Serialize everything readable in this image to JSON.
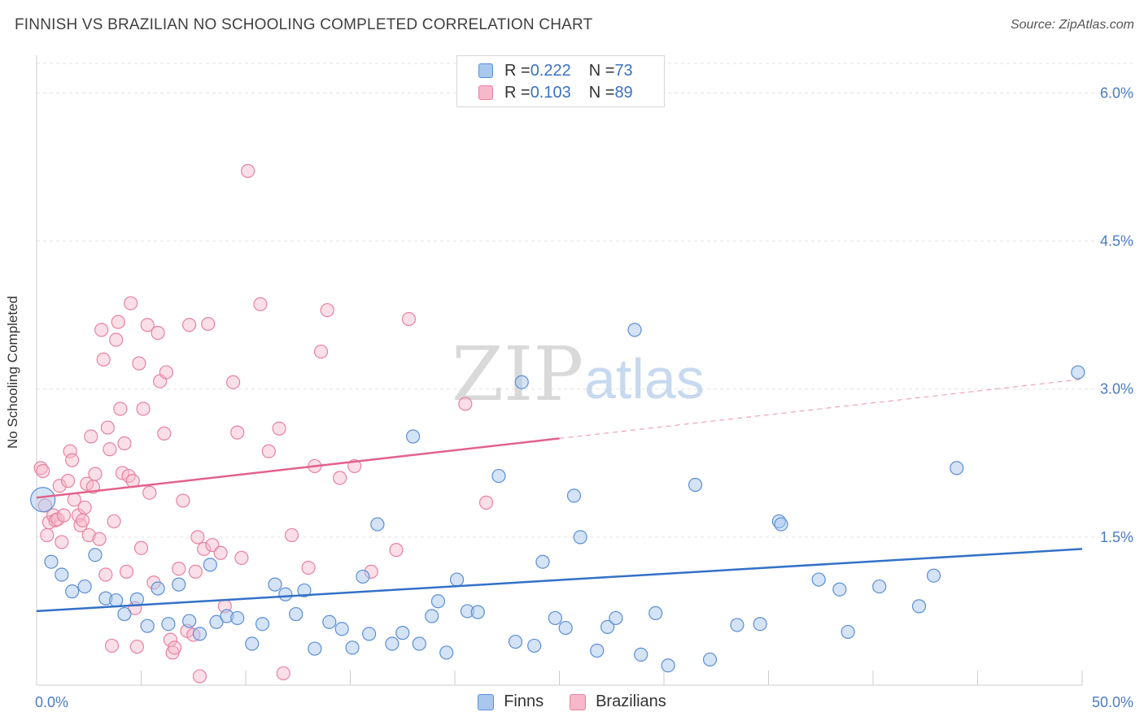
{
  "title": "FINNISH VS BRAZILIAN NO SCHOOLING COMPLETED CORRELATION CHART",
  "source": "Source: ZipAtlas.com",
  "watermark": {
    "zip": "ZIP",
    "atlas": "atlas"
  },
  "legend": {
    "rows": [
      {
        "r_label": "R = ",
        "r_value": "0.222",
        "n_label": "N = ",
        "n_value": "73"
      },
      {
        "r_label": "R = ",
        "r_value": "0.103",
        "n_label": "N = ",
        "n_value": "89"
      }
    ]
  },
  "bottom_legend": [
    "Finns",
    "Brazilians"
  ],
  "colors": {
    "finns_fill": "#a9c8ee",
    "finns_stroke": "#5b8fd6",
    "finns_line": "#3471c6",
    "braz_fill": "#f7b8cb",
    "braz_stroke": "#e8819f",
    "braz_line": "#e2628c",
    "grid": "#e3e3e3",
    "axis": "#cccccc",
    "tick_text": "#4a7cc7"
  },
  "chart_data": {
    "type": "scatter",
    "title": "FINNISH VS BRAZILIAN NO SCHOOLING COMPLETED CORRELATION CHART",
    "xlabel": "",
    "ylabel": "No Schooling Completed",
    "xlim": [
      0,
      50
    ],
    "ylim": [
      0,
      6.3
    ],
    "x_tick_labels": [
      "0.0%",
      "50.0%"
    ],
    "y_ticks": [
      1.5,
      3.0,
      4.5,
      6.0
    ],
    "y_tick_labels": [
      "1.5%",
      "3.0%",
      "4.5%",
      "6.0%"
    ],
    "grid": "horizontal dashed",
    "legend_placement": "top-center",
    "series": [
      {
        "name": "Finns",
        "r": 0.222,
        "n": 73,
        "trend": {
          "x0": 0,
          "y0": 0.75,
          "x1": 50,
          "y1": 1.38
        },
        "points": [
          [
            0.3,
            1.88
          ],
          [
            0.7,
            1.25
          ],
          [
            1.2,
            1.12
          ],
          [
            1.7,
            0.95
          ],
          [
            2.3,
            1.0
          ],
          [
            2.8,
            1.32
          ],
          [
            3.3,
            0.88
          ],
          [
            3.8,
            0.86
          ],
          [
            4.2,
            0.72
          ],
          [
            4.8,
            0.87
          ],
          [
            5.3,
            0.6
          ],
          [
            5.8,
            0.98
          ],
          [
            6.3,
            0.62
          ],
          [
            6.8,
            1.02
          ],
          [
            7.3,
            0.65
          ],
          [
            7.8,
            0.52
          ],
          [
            8.3,
            1.22
          ],
          [
            8.6,
            0.64
          ],
          [
            9.1,
            0.7
          ],
          [
            9.6,
            0.68
          ],
          [
            10.3,
            0.42
          ],
          [
            10.8,
            0.62
          ],
          [
            11.4,
            1.02
          ],
          [
            11.9,
            0.92
          ],
          [
            12.4,
            0.72
          ],
          [
            12.8,
            0.96
          ],
          [
            13.3,
            0.37
          ],
          [
            14.0,
            0.64
          ],
          [
            14.6,
            0.57
          ],
          [
            15.1,
            0.38
          ],
          [
            15.6,
            1.1
          ],
          [
            15.9,
            0.52
          ],
          [
            16.3,
            1.63
          ],
          [
            17.0,
            0.42
          ],
          [
            17.5,
            0.53
          ],
          [
            18.0,
            2.52
          ],
          [
            18.3,
            0.42
          ],
          [
            18.9,
            0.7
          ],
          [
            19.2,
            0.85
          ],
          [
            19.6,
            0.33
          ],
          [
            20.1,
            1.07
          ],
          [
            20.6,
            0.75
          ],
          [
            21.1,
            0.74
          ],
          [
            22.1,
            2.12
          ],
          [
            22.9,
            0.44
          ],
          [
            23.2,
            3.07
          ],
          [
            23.8,
            0.4
          ],
          [
            24.2,
            1.25
          ],
          [
            24.8,
            0.68
          ],
          [
            25.3,
            0.58
          ],
          [
            25.7,
            1.92
          ],
          [
            26.0,
            1.5
          ],
          [
            26.8,
            0.35
          ],
          [
            27.3,
            0.59
          ],
          [
            27.7,
            0.68
          ],
          [
            28.6,
            3.6
          ],
          [
            28.9,
            0.31
          ],
          [
            29.6,
            0.73
          ],
          [
            30.2,
            0.2
          ],
          [
            31.5,
            2.03
          ],
          [
            32.2,
            0.26
          ],
          [
            33.5,
            0.61
          ],
          [
            34.6,
            0.62
          ],
          [
            35.5,
            1.66
          ],
          [
            35.6,
            1.63
          ],
          [
            37.4,
            1.07
          ],
          [
            38.4,
            0.97
          ],
          [
            38.8,
            0.54
          ],
          [
            40.3,
            1.0
          ],
          [
            42.2,
            0.8
          ],
          [
            42.9,
            1.11
          ],
          [
            44.0,
            2.2
          ],
          [
            49.8,
            3.17
          ]
        ]
      },
      {
        "name": "Brazilians",
        "r": 0.103,
        "n": 89,
        "trend": {
          "x0": 0,
          "y0": 1.9,
          "x1": 25,
          "y1": 2.5,
          "dash_x1": 50,
          "dash_y1": 3.1
        },
        "points": [
          [
            0.2,
            2.2
          ],
          [
            0.3,
            2.17
          ],
          [
            0.4,
            1.82
          ],
          [
            0.5,
            1.52
          ],
          [
            0.6,
            1.65
          ],
          [
            0.8,
            1.72
          ],
          [
            0.9,
            1.67
          ],
          [
            1.0,
            1.68
          ],
          [
            1.1,
            2.02
          ],
          [
            1.2,
            1.45
          ],
          [
            1.3,
            1.72
          ],
          [
            1.5,
            2.07
          ],
          [
            1.6,
            2.37
          ],
          [
            1.7,
            2.28
          ],
          [
            1.8,
            1.88
          ],
          [
            2.0,
            1.72
          ],
          [
            2.1,
            1.62
          ],
          [
            2.2,
            1.67
          ],
          [
            2.3,
            1.8
          ],
          [
            2.4,
            2.04
          ],
          [
            2.5,
            1.52
          ],
          [
            2.6,
            2.52
          ],
          [
            2.7,
            2.01
          ],
          [
            2.8,
            2.14
          ],
          [
            3.0,
            1.48
          ],
          [
            3.1,
            3.6
          ],
          [
            3.2,
            3.3
          ],
          [
            3.3,
            1.12
          ],
          [
            3.4,
            2.61
          ],
          [
            3.5,
            2.39
          ],
          [
            3.6,
            0.4
          ],
          [
            3.7,
            1.66
          ],
          [
            3.8,
            3.5
          ],
          [
            3.9,
            3.68
          ],
          [
            4.0,
            2.8
          ],
          [
            4.1,
            2.15
          ],
          [
            4.2,
            2.45
          ],
          [
            4.3,
            1.15
          ],
          [
            4.4,
            2.12
          ],
          [
            4.5,
            3.87
          ],
          [
            4.6,
            2.07
          ],
          [
            4.7,
            0.78
          ],
          [
            4.8,
            0.39
          ],
          [
            4.9,
            3.26
          ],
          [
            5.0,
            1.39
          ],
          [
            5.1,
            2.8
          ],
          [
            5.3,
            3.65
          ],
          [
            5.4,
            1.95
          ],
          [
            5.6,
            1.04
          ],
          [
            5.8,
            3.57
          ],
          [
            5.9,
            3.08
          ],
          [
            6.1,
            2.55
          ],
          [
            6.2,
            3.17
          ],
          [
            6.4,
            0.46
          ],
          [
            6.5,
            0.33
          ],
          [
            6.6,
            0.38
          ],
          [
            6.8,
            1.18
          ],
          [
            7.0,
            1.87
          ],
          [
            7.2,
            0.55
          ],
          [
            7.3,
            3.65
          ],
          [
            7.5,
            0.51
          ],
          [
            7.6,
            1.15
          ],
          [
            7.7,
            1.5
          ],
          [
            7.8,
            0.09
          ],
          [
            8.0,
            1.38
          ],
          [
            8.2,
            3.66
          ],
          [
            8.4,
            1.42
          ],
          [
            8.8,
            1.34
          ],
          [
            9.0,
            0.8
          ],
          [
            9.4,
            3.07
          ],
          [
            9.6,
            2.56
          ],
          [
            9.8,
            1.29
          ],
          [
            10.1,
            5.21
          ],
          [
            10.7,
            3.86
          ],
          [
            11.1,
            2.37
          ],
          [
            11.6,
            2.6
          ],
          [
            11.8,
            0.12
          ],
          [
            12.2,
            1.52
          ],
          [
            13.0,
            1.19
          ],
          [
            13.3,
            2.22
          ],
          [
            13.6,
            3.38
          ],
          [
            13.9,
            3.8
          ],
          [
            14.5,
            2.1
          ],
          [
            15.2,
            2.22
          ],
          [
            16.0,
            1.15
          ],
          [
            17.2,
            1.37
          ],
          [
            17.8,
            3.71
          ],
          [
            20.5,
            2.85
          ],
          [
            21.5,
            1.85
          ]
        ]
      }
    ]
  }
}
